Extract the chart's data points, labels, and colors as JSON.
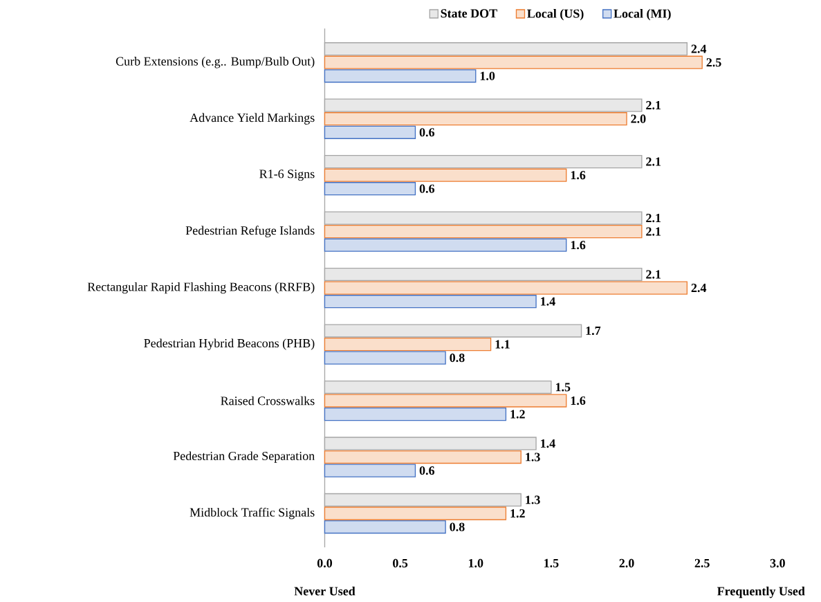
{
  "chart_data": {
    "type": "bar",
    "orientation": "horizontal",
    "categories": [
      "Curb Extensions (e.g.. Bump/Bulb Out)",
      "Advance Yield Markings",
      "R1-6 Signs",
      "Pedestrian Refuge Islands",
      "Rectangular Rapid Flashing Beacons (RRFB)",
      "Pedestrian Hybrid Beacons (PHB)",
      "Raised Crosswalks",
      "Pedestrian Grade Separation",
      "Midblock Traffic Signals"
    ],
    "series": [
      {
        "name": "State DOT",
        "color": "#a5a5a5",
        "values": [
          2.4,
          2.1,
          2.1,
          2.1,
          2.1,
          1.7,
          1.5,
          1.4,
          1.3
        ],
        "value_labels": [
          "2.4",
          "2.1",
          "2.1",
          "2.1",
          "2.1",
          "1.7",
          "1.5",
          "1.4",
          "1.3"
        ]
      },
      {
        "name": "Local (US)",
        "color": "#ed7d31",
        "values": [
          2.5,
          2.0,
          1.6,
          2.1,
          2.4,
          1.1,
          1.6,
          1.3,
          1.2
        ],
        "value_labels": [
          "2.5",
          "2.0",
          "1.6",
          "2.1",
          "2.4",
          "1.1",
          "1.6",
          "1.3",
          "1.2"
        ]
      },
      {
        "name": "Local (MI)",
        "color": "#4472c4",
        "values": [
          1.0,
          0.6,
          0.6,
          1.6,
          1.4,
          0.8,
          1.2,
          0.6,
          0.8
        ],
        "value_labels": [
          "1.0",
          "0.6",
          "0.6",
          "1.6",
          "1.4",
          "0.8",
          "1.2",
          "0.6",
          "0.8"
        ]
      }
    ],
    "xlim": [
      0,
      3
    ],
    "xticks": [
      {
        "value": 0,
        "label": "0.0"
      },
      {
        "value": 0.5,
        "label": "0.5"
      },
      {
        "value": 1,
        "label": "1.0"
      },
      {
        "value": 1.5,
        "label": "1.5"
      },
      {
        "value": 2,
        "label": "2.0"
      },
      {
        "value": 2.5,
        "label": "2.5"
      },
      {
        "value": 3,
        "label": "3.0"
      }
    ],
    "legend": "top",
    "annotations": [
      "Never Used",
      "Frequently Used"
    ]
  }
}
